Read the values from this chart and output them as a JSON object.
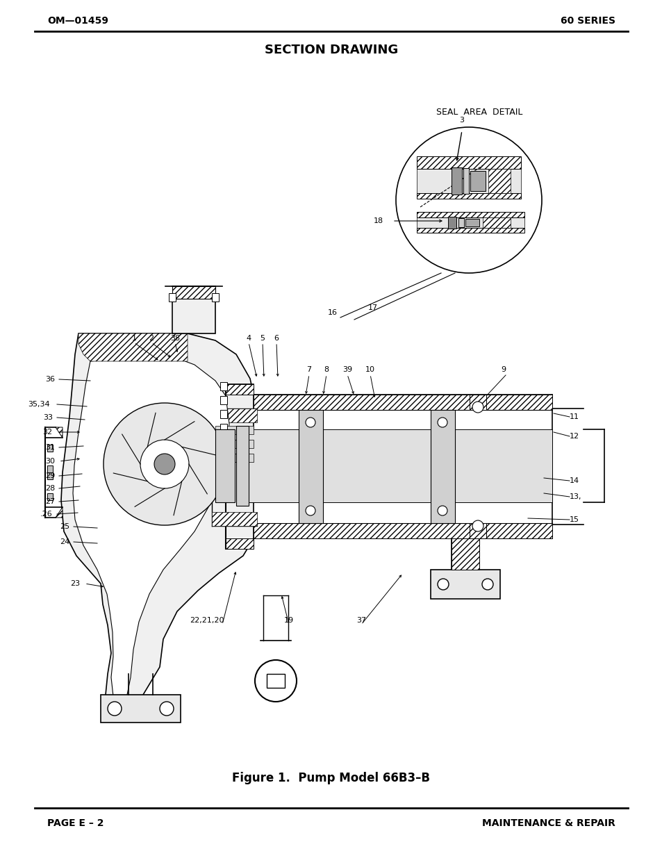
{
  "page_title": "SECTION DRAWING",
  "header_left": "OM—01459",
  "header_right": "60 SERIES",
  "footer_left": "PAGE E – 2",
  "footer_right": "MAINTENANCE & REPAIR",
  "figure_caption": "Figure 1.  Pump Model 66B3–B",
  "bg_color": "#ffffff",
  "line_color": "#000000",
  "seal_label": "SEAL  AREA  DETAIL",
  "fig_width": 9.54,
  "fig_height": 12.35
}
